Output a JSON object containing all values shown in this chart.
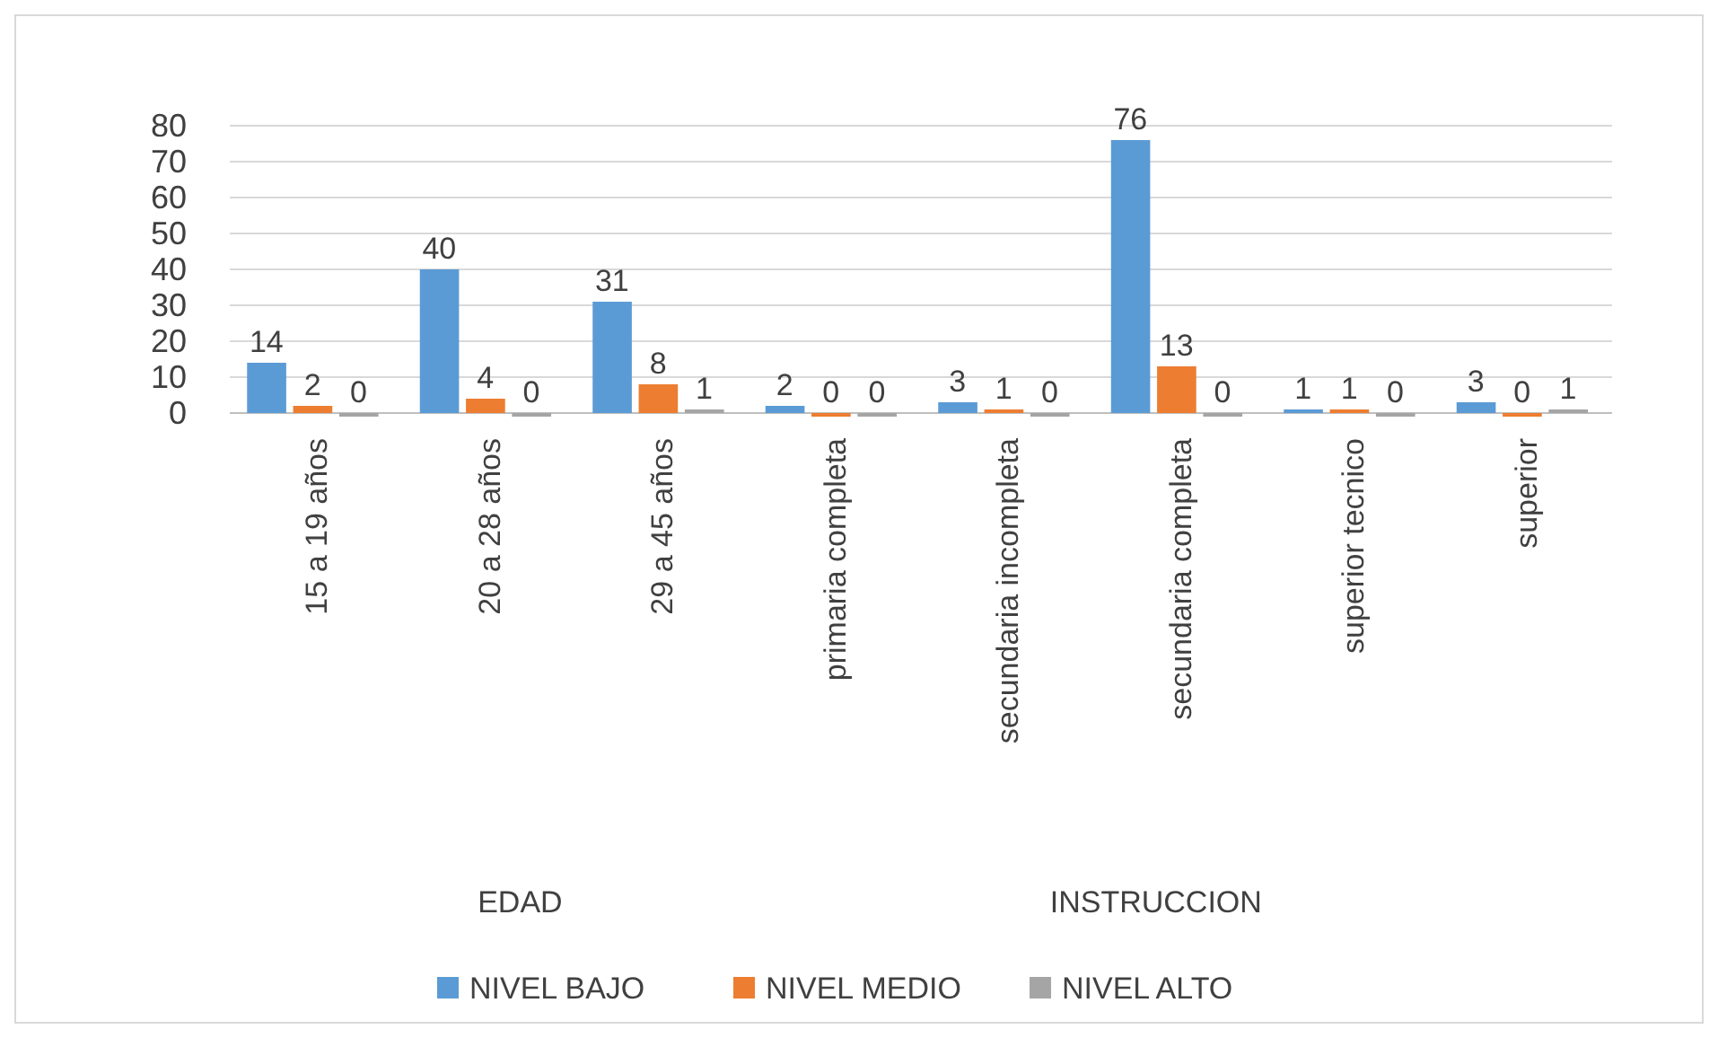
{
  "chart_data": {
    "type": "bar",
    "categories": [
      "15 a 19 años",
      "20 a 28 años",
      "29 a 45 años",
      "primaria completa",
      "secundaria incompleta",
      "secundaria completa",
      "superior tecnico",
      "superior"
    ],
    "series": [
      {
        "name": "NIVEL BAJO",
        "color": "#5b9bd5",
        "values": [
          14,
          40,
          31,
          2,
          3,
          76,
          1,
          3
        ]
      },
      {
        "name": "NIVEL MEDIO",
        "color": "#ed7d31",
        "values": [
          2,
          4,
          8,
          0,
          1,
          13,
          1,
          0
        ]
      },
      {
        "name": "NIVEL ALTO",
        "color": "#a5a5a5",
        "values": [
          0,
          0,
          1,
          0,
          0,
          0,
          0,
          1
        ]
      }
    ],
    "ylim": [
      0,
      80
    ],
    "yticks": [
      0,
      10,
      20,
      30,
      40,
      50,
      60,
      70,
      80
    ],
    "grid": "y",
    "data_labels": true,
    "legend": "bottom",
    "annotations": [
      "EDAD",
      "INSTRUCCION"
    ]
  }
}
